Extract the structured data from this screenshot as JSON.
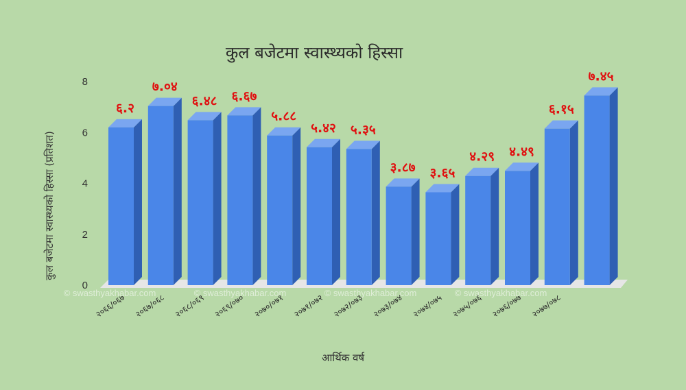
{
  "colors": {
    "background": "#b8d9a8",
    "bar_front": "#4a86e8",
    "bar_side": "#2f5fb3",
    "bar_top": "#7aa6f0",
    "floor": "#e6e6e6",
    "data_label": "#e01010"
  },
  "watermark": "© swasthyakhabar.com",
  "chart_data": {
    "type": "bar",
    "title": "कुल बजेटमा स्वास्थ्यको हिस्सा",
    "xlabel": "आर्थिक वर्ष",
    "ylabel": "कुल बजेटमा स्वास्थ्यको हिस्सा (प्रतिशत)",
    "ylim": [
      0,
      8
    ],
    "yticks": [
      "0",
      "2",
      "4",
      "6",
      "8"
    ],
    "categories": [
      "२०६६/०६७",
      "२०६७/०६८",
      "२०६८/०६९",
      "२०६९/०७०",
      "२०७०/०७१",
      "२०७१/०७२",
      "२०७२/०७३",
      "२०७३/०७४",
      "२०७४/०७५",
      "२०७५/०७६",
      "२०७६/०७७",
      "२०७७/०७८",
      ""
    ],
    "values": [
      6.2,
      7.04,
      6.48,
      6.67,
      5.88,
      5.42,
      5.35,
      3.87,
      3.65,
      4.29,
      4.49,
      6.15,
      7.45
    ],
    "value_labels": [
      "६.२",
      "७.०४",
      "६.४८",
      "६.६७",
      "५.८८",
      "५.४२",
      "५.३५",
      "३.८७",
      "३.६५",
      "४.२९",
      "४.४९",
      "६.१५",
      "७.४५"
    ],
    "grid": false,
    "legend": "none"
  }
}
